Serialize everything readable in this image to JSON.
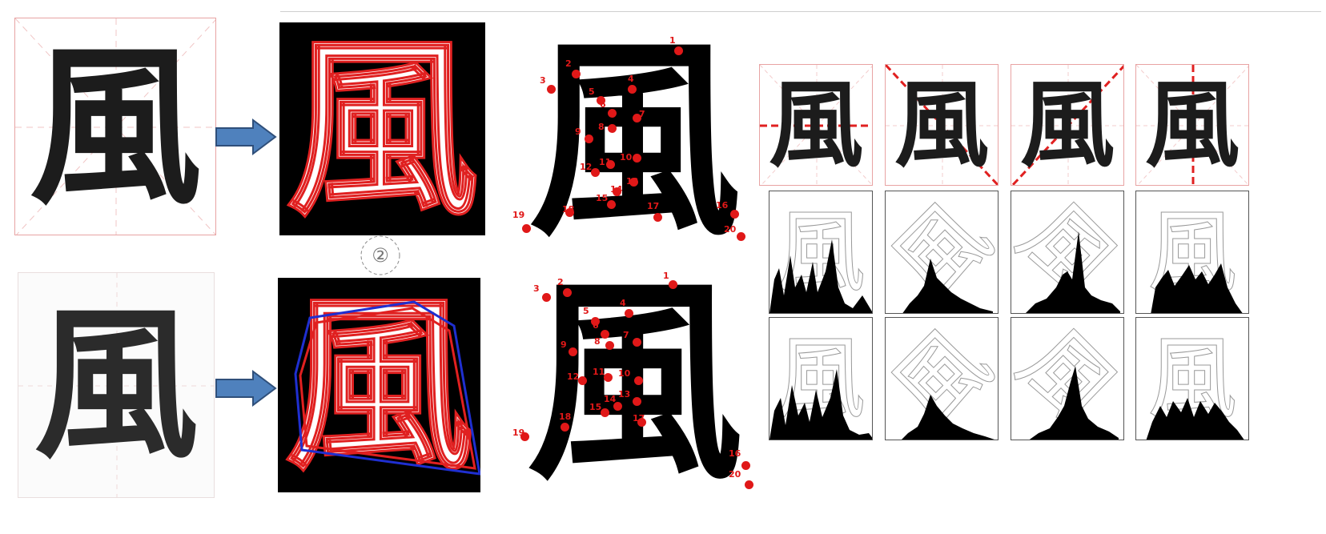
{
  "character": "風",
  "step_marker": "②",
  "projection_axes": [
    "horizontal",
    "diagonal-main",
    "diagonal-anti",
    "vertical"
  ],
  "point_labels": [
    "1",
    "2",
    "3",
    "4",
    "5",
    "6",
    "7",
    "8",
    "9",
    "10",
    "11",
    "12",
    "13",
    "14",
    "15",
    "16",
    "17",
    "18",
    "19",
    "20"
  ],
  "colors": {
    "contour": "#e02020",
    "hull": "#1f2fd0",
    "arrow": "#4f81bd",
    "grid": "#e8a3a3",
    "points": "#e01818"
  }
}
